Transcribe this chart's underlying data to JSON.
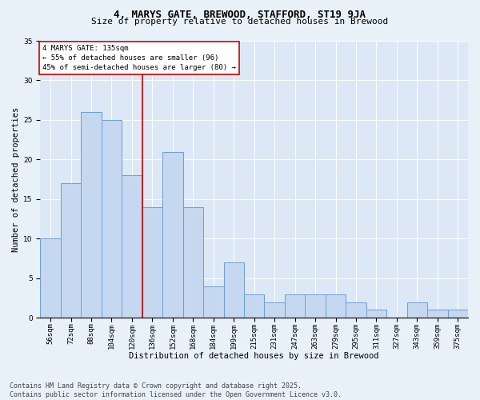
{
  "title": "4, MARYS GATE, BREWOOD, STAFFORD, ST19 9JA",
  "subtitle": "Size of property relative to detached houses in Brewood",
  "xlabel": "Distribution of detached houses by size in Brewood",
  "ylabel": "Number of detached properties",
  "categories": [
    "56sqm",
    "72sqm",
    "88sqm",
    "104sqm",
    "120sqm",
    "136sqm",
    "152sqm",
    "168sqm",
    "184sqm",
    "199sqm",
    "215sqm",
    "231sqm",
    "247sqm",
    "263sqm",
    "279sqm",
    "295sqm",
    "311sqm",
    "327sqm",
    "343sqm",
    "359sqm",
    "375sqm"
  ],
  "values": [
    10,
    17,
    26,
    25,
    18,
    14,
    21,
    14,
    4,
    7,
    3,
    2,
    3,
    3,
    3,
    2,
    1,
    0,
    2,
    1,
    1
  ],
  "bar_color": "#c5d8f0",
  "bar_edge_color": "#6a9fd8",
  "vline_x_index": 4.5,
  "annotation_line1": "4 MARYS GATE: 135sqm",
  "annotation_line2": "← 55% of detached houses are smaller (96)",
  "annotation_line3": "45% of semi-detached houses are larger (80) →",
  "annotation_box_color": "#ffffff",
  "annotation_box_edgecolor": "#cc0000",
  "vline_color": "#cc0000",
  "ylim": [
    0,
    35
  ],
  "yticks": [
    0,
    5,
    10,
    15,
    20,
    25,
    30,
    35
  ],
  "footer": "Contains HM Land Registry data © Crown copyright and database right 2025.\nContains public sector information licensed under the Open Government Licence v3.0.",
  "background_color": "#e8f0f8",
  "plot_background_color": "#dce8f5",
  "title_fontsize": 9,
  "subtitle_fontsize": 8,
  "xlabel_fontsize": 7.5,
  "ylabel_fontsize": 7.5,
  "tick_fontsize": 6.5,
  "annotation_fontsize": 6.5,
  "footer_fontsize": 6
}
